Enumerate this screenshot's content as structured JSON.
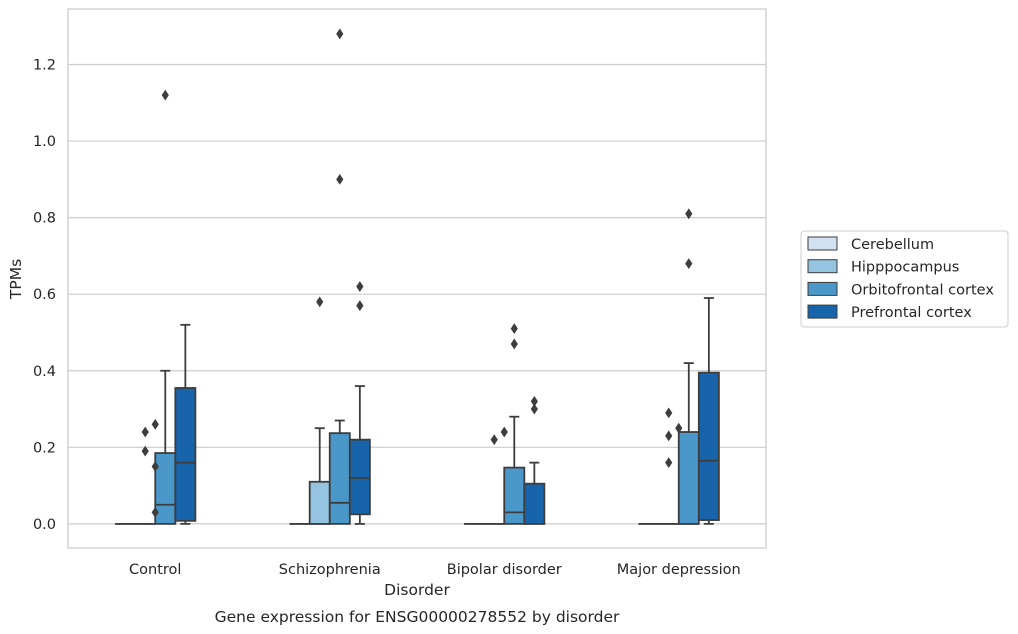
{
  "chart_data": {
    "type": "box",
    "title": "Gene expression for ENSG00000278552 by disorder",
    "xlabel": "Disorder",
    "ylabel": "TPMs",
    "ylim": [
      -0.063,
      1.345
    ],
    "yticks": [
      0.0,
      0.2,
      0.4,
      0.6,
      0.8,
      1.0,
      1.2
    ],
    "ytick_labels": [
      "0.0",
      "0.2",
      "0.4",
      "0.6",
      "0.8",
      "1.0",
      "1.2"
    ],
    "grid": "horizontal",
    "legend_position": "right",
    "categories": [
      "Control",
      "Schizophrenia",
      "Bipolar disorder",
      "Major depression"
    ],
    "series": [
      {
        "name": "Cerebellum",
        "color": "#d0e1f2",
        "boxes": [
          {
            "q1": 0,
            "median": 0,
            "q3": 0,
            "whisker_low": 0,
            "whisker_high": 0,
            "outliers": []
          },
          {
            "q1": 0,
            "median": 0,
            "q3": 0,
            "whisker_low": 0,
            "whisker_high": 0,
            "outliers": []
          },
          {
            "q1": 0,
            "median": 0,
            "q3": 0,
            "whisker_low": 0,
            "whisker_high": 0,
            "outliers": []
          },
          {
            "q1": 0,
            "median": 0,
            "q3": 0,
            "whisker_low": 0,
            "whisker_high": 0,
            "outliers": []
          }
        ]
      },
      {
        "name": "Hipppocampus",
        "color": "#94c4df",
        "boxes": [
          {
            "q1": 0,
            "median": 0,
            "q3": 0,
            "whisker_low": 0,
            "whisker_high": 0,
            "outliers": [
              0.24,
              0.19
            ]
          },
          {
            "q1": 0,
            "median": 0,
            "q3": 0.11,
            "whisker_low": 0,
            "whisker_high": 0.25,
            "outliers": [
              0.58
            ]
          },
          {
            "q1": 0,
            "median": 0,
            "q3": 0,
            "whisker_low": 0,
            "whisker_high": 0,
            "outliers": [
              0.22
            ]
          },
          {
            "q1": 0,
            "median": 0,
            "q3": 0,
            "whisker_low": 0,
            "whisker_high": 0,
            "outliers": [
              0.29,
              0.23,
              0.16
            ]
          }
        ]
      },
      {
        "name": "Orbitofrontal cortex",
        "color": "#4a98c9",
        "boxes": [
          {
            "q1": 0,
            "median": 0.05,
            "q3": 0.185,
            "whisker_low": 0,
            "whisker_high": 0.4,
            "outliers": [
              1.12
            ]
          },
          {
            "q1": 0,
            "median": 0.055,
            "q3": 0.237,
            "whisker_low": 0,
            "whisker_high": 0.27,
            "outliers": [
              1.28,
              0.9
            ]
          },
          {
            "q1": 0,
            "median": 0.03,
            "q3": 0.147,
            "whisker_low": 0,
            "whisker_high": 0.28,
            "outliers": [
              0.51,
              0.47
            ]
          },
          {
            "q1": 0,
            "median": 0,
            "q3": 0.24,
            "whisker_low": 0,
            "whisker_high": 0.42,
            "outliers": [
              0.81,
              0.68
            ]
          }
        ]
      },
      {
        "name": "Prefrontal cortex",
        "color": "#1764ab",
        "boxes": [
          {
            "q1": 0.008,
            "median": 0.16,
            "q3": 0.355,
            "whisker_low": 0,
            "whisker_high": 0.52,
            "outliers": []
          },
          {
            "q1": 0.025,
            "median": 0.12,
            "q3": 0.22,
            "whisker_low": 0,
            "whisker_high": 0.36,
            "outliers": [
              0.62,
              0.57
            ]
          },
          {
            "q1": 0,
            "median": 0,
            "q3": 0.105,
            "whisker_low": 0,
            "whisker_high": 0.16,
            "outliers": [
              0.32,
              0.3
            ]
          },
          {
            "q1": 0.01,
            "median": 0.165,
            "q3": 0.395,
            "whisker_low": 0,
            "whisker_high": 0.59,
            "outliers": []
          }
        ]
      }
    ],
    "extra_outliers": [
      {
        "category": 0,
        "between": [
          1,
          2
        ],
        "values": [
          0.26,
          0.15,
          0.03
        ]
      },
      {
        "category": 1,
        "between": [
          2,
          2
        ],
        "values": []
      },
      {
        "category": 2,
        "between": [
          1,
          2
        ],
        "values": [
          0.24
        ]
      },
      {
        "category": 3,
        "between": [
          1,
          2
        ],
        "values": [
          0.25
        ]
      }
    ]
  }
}
